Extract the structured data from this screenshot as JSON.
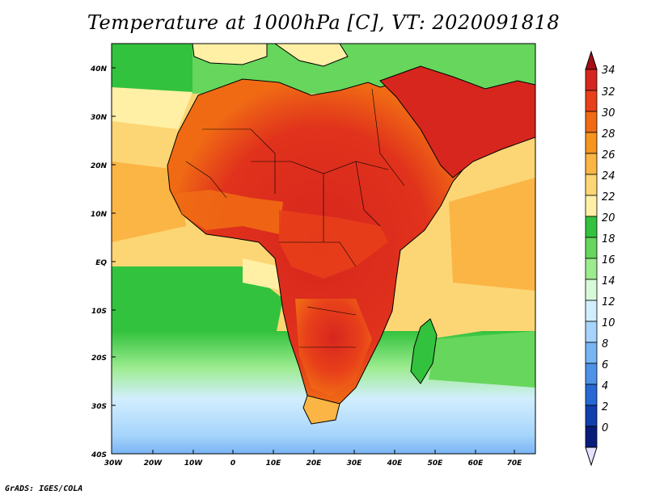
{
  "title": "Temperature at 1000hPa [C], VT: 2020091818",
  "footer": "GrADS: IGES/COLA",
  "map": {
    "lat_labels": [
      "40N",
      "30N",
      "20N",
      "10N",
      "EQ",
      "10S",
      "20S",
      "30S",
      "40S"
    ],
    "lon_labels": [
      "30W",
      "20W",
      "10W",
      "0",
      "10E",
      "20E",
      "30E",
      "40E",
      "50E",
      "60E",
      "70E"
    ]
  },
  "legend": {
    "levels": [
      "34",
      "32",
      "30",
      "28",
      "26",
      "24",
      "22",
      "20",
      "18",
      "16",
      "14",
      "12",
      "10",
      "8",
      "6",
      "4",
      "2",
      "0"
    ],
    "colors": [
      "#a50f15",
      "#d7261e",
      "#e8401a",
      "#f06a14",
      "#f7941d",
      "#fbb545",
      "#fcd675",
      "#fff0a5",
      "#33c23d",
      "#66d65c",
      "#9cec8f",
      "#d9fad8",
      "#d2eefe",
      "#a6d4fb",
      "#79b4f4",
      "#4d92e8",
      "#2768d4",
      "#123fae",
      "#081d79"
    ]
  }
}
